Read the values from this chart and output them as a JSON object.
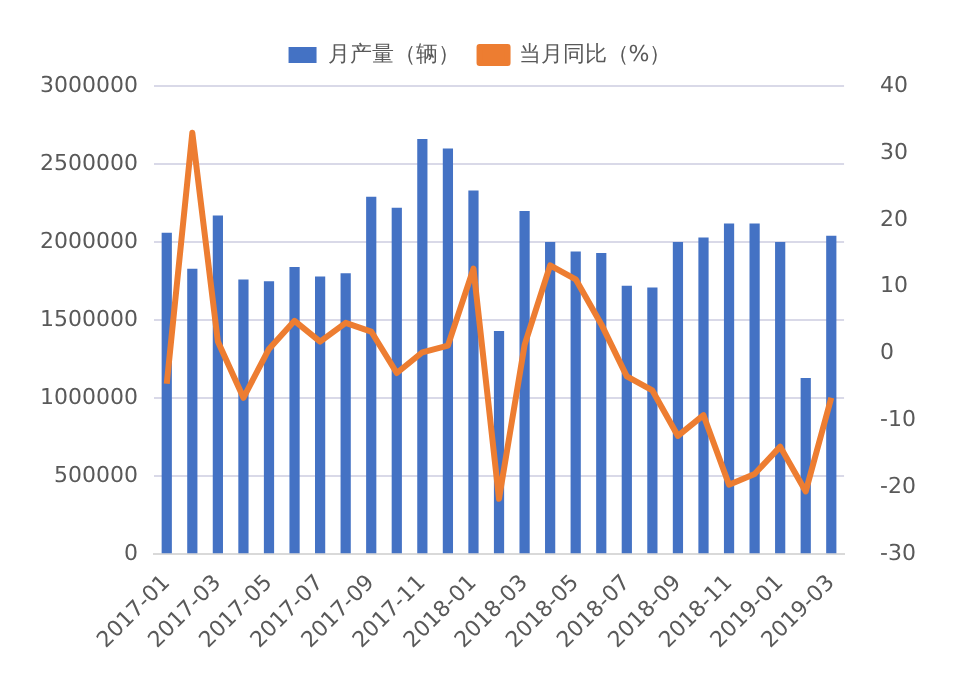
{
  "chart_data": {
    "type": "bar",
    "categories": [
      "2017-01",
      null,
      "2017-03",
      null,
      "2017-05",
      null,
      "2017-07",
      null,
      "2017-09",
      null,
      "2017-11",
      null,
      "2018-01",
      null,
      "2018-03",
      null,
      "2018-05",
      null,
      "2018-07",
      null,
      "2018-09",
      null,
      "2018-11",
      null,
      "2019-01",
      null,
      "2019-03"
    ],
    "series": [
      {
        "name": "月产量（辆）",
        "color": "#4472c4",
        "values": [
          2060000,
          1830000,
          2170000,
          1760000,
          1750000,
          1840000,
          1780000,
          1800000,
          2290000,
          2220000,
          2660000,
          2600000,
          2330000,
          1430000,
          2200000,
          2000000,
          1940000,
          1930000,
          1720000,
          1710000,
          2000000,
          2030000,
          2120000,
          2120000,
          2000000,
          1130000,
          2040000
        ]
      },
      {
        "name": "当月同比（%）",
        "type": "line",
        "axis": "y2",
        "color": "#ed7d31",
        "values": [
          -4.5,
          33,
          1.8,
          -6.6,
          0.7,
          4.9,
          1.8,
          4.6,
          3.3,
          -2.9,
          0.2,
          1.2,
          12.7,
          -21.7,
          1.3,
          13.2,
          11.1,
          4.4,
          -3.4,
          -5.5,
          -12.3,
          -9.2,
          -19.6,
          -18,
          -13.9,
          -20.6,
          -6.6
        ]
      }
    ],
    "ylim": [
      0,
      3000000
    ],
    "yticks": [
      0,
      500000,
      1000000,
      1500000,
      2000000,
      2500000,
      3000000
    ],
    "y2lim": [
      -30,
      40
    ],
    "y2ticks": [
      -30,
      -20,
      -10,
      0,
      10,
      20,
      30,
      40
    ],
    "grid": "y",
    "legend": "top",
    "marker": "none",
    "line_style": "solid"
  }
}
